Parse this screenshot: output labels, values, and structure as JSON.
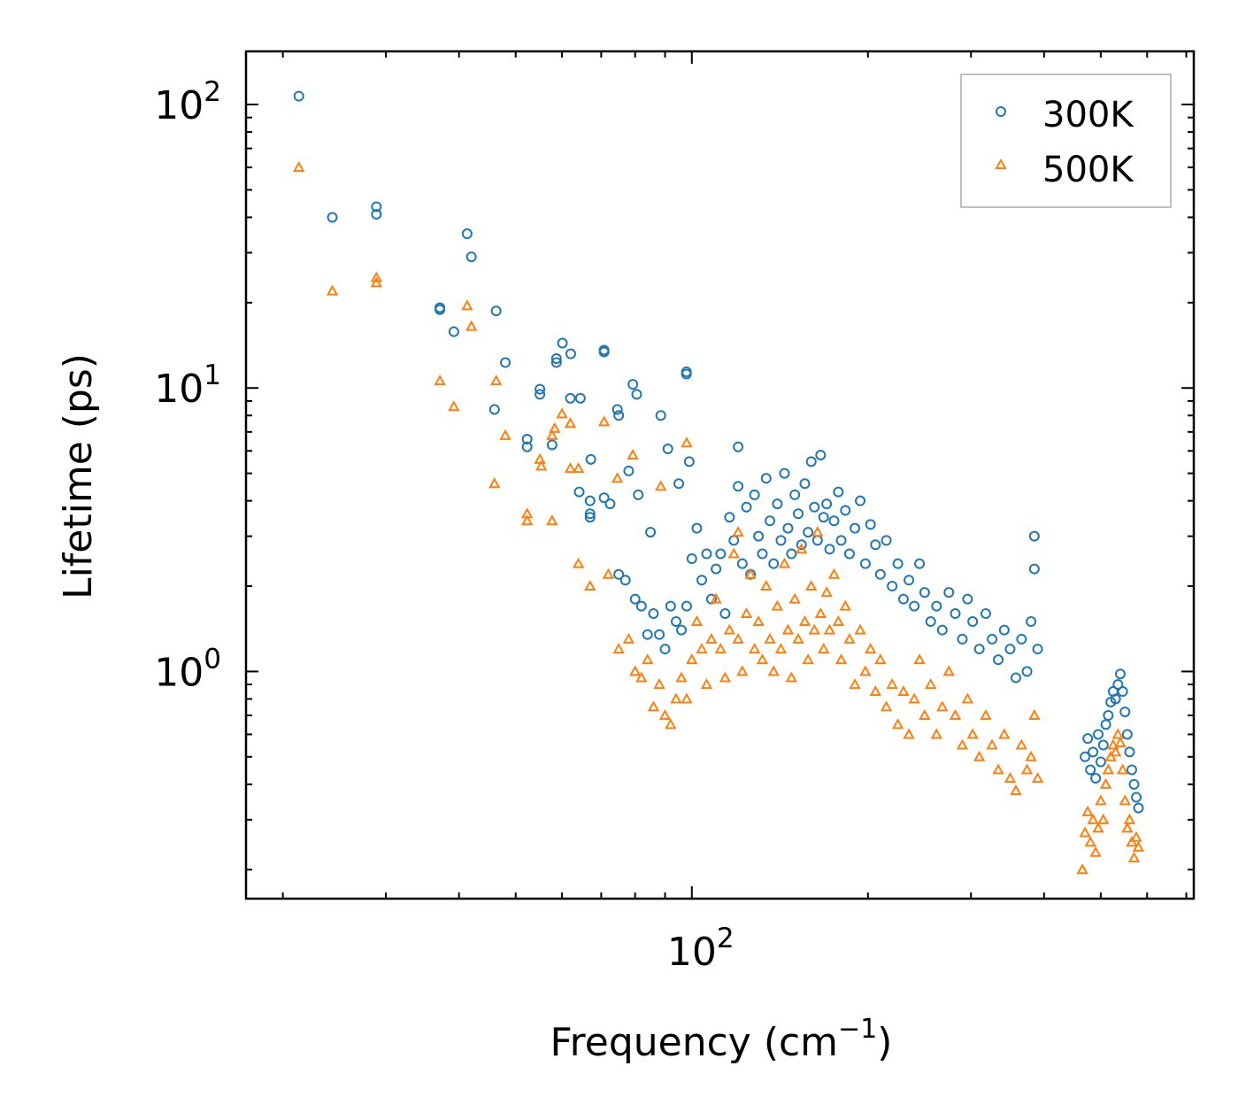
{
  "chart_data": {
    "type": "scatter",
    "title": "",
    "xlabel": "Frequency (cm",
    "xlabel_sup": "−1",
    "xlabel_end": ")",
    "ylabel": "Lifetime (ps)",
    "xscale": "log",
    "yscale": "log",
    "xlim": [
      17.3,
      721
    ],
    "ylim": [
      0.158,
      154
    ],
    "x_ticks": [
      {
        "value": 100,
        "base": "10",
        "exp": "2"
      }
    ],
    "y_ticks": [
      {
        "value": 1,
        "base": "10",
        "exp": "0"
      },
      {
        "value": 10,
        "base": "10",
        "exp": "1"
      },
      {
        "value": 100,
        "base": "10",
        "exp": "2"
      }
    ],
    "legend_position": "top-right",
    "series": [
      {
        "name": "300K",
        "marker": "circle",
        "color": "#1f77b4",
        "points": [
          [
            21.3,
            107
          ],
          [
            24.3,
            40
          ],
          [
            28.9,
            43.6
          ],
          [
            28.9,
            41
          ],
          [
            41.3,
            35
          ],
          [
            42,
            29
          ],
          [
            37.1,
            19.2
          ],
          [
            37.1,
            18.9
          ],
          [
            39.2,
            15.8
          ],
          [
            46.3,
            18.7
          ],
          [
            48,
            12.3
          ],
          [
            60.1,
            14.4
          ],
          [
            58.7,
            12.7
          ],
          [
            58.7,
            12.3
          ],
          [
            62.1,
            13.2
          ],
          [
            70.8,
            13.6
          ],
          [
            70.8,
            13.4
          ],
          [
            97.9,
            11.4
          ],
          [
            97.9,
            11.2
          ],
          [
            46,
            8.4
          ],
          [
            55,
            9.9
          ],
          [
            55,
            9.5
          ],
          [
            62,
            9.2
          ],
          [
            64.5,
            9.2
          ],
          [
            74.6,
            8.4
          ],
          [
            75,
            8.0
          ],
          [
            79.3,
            10.3
          ],
          [
            80.5,
            9.5
          ],
          [
            88.5,
            8.0
          ],
          [
            52.3,
            6.6
          ],
          [
            52.3,
            6.2
          ],
          [
            57.7,
            6.3
          ],
          [
            67.2,
            5.6
          ],
          [
            64.2,
            4.3
          ],
          [
            67,
            4.0
          ],
          [
            67,
            3.6
          ],
          [
            67,
            3.5
          ],
          [
            70.8,
            4.1
          ],
          [
            72.5,
            3.9
          ],
          [
            78,
            5.1
          ],
          [
            81,
            4.2
          ],
          [
            85,
            3.1
          ],
          [
            91,
            6.1
          ],
          [
            95,
            4.6
          ],
          [
            99,
            5.5
          ],
          [
            75,
            2.2
          ],
          [
            77,
            2.1
          ],
          [
            80,
            1.8
          ],
          [
            82,
            1.7
          ],
          [
            84,
            1.35
          ],
          [
            86,
            1.6
          ],
          [
            88,
            1.35
          ],
          [
            90,
            1.2
          ],
          [
            92,
            1.7
          ],
          [
            94,
            1.5
          ],
          [
            96,
            1.4
          ],
          [
            98,
            1.7
          ],
          [
            100,
            2.5
          ],
          [
            102,
            3.2
          ],
          [
            104,
            2.1
          ],
          [
            106,
            2.6
          ],
          [
            108,
            1.8
          ],
          [
            110,
            2.3
          ],
          [
            112,
            2.6
          ],
          [
            114,
            1.6
          ],
          [
            116,
            3.5
          ],
          [
            118,
            2.9
          ],
          [
            120,
            4.5
          ],
          [
            120,
            6.2
          ],
          [
            122,
            2.4
          ],
          [
            124,
            3.8
          ],
          [
            126,
            2.2
          ],
          [
            128,
            4.2
          ],
          [
            130,
            3.0
          ],
          [
            132,
            2.6
          ],
          [
            134,
            4.8
          ],
          [
            136,
            3.4
          ],
          [
            138,
            2.4
          ],
          [
            140,
            3.9
          ],
          [
            142,
            2.9
          ],
          [
            144,
            5.0
          ],
          [
            146,
            3.2
          ],
          [
            148,
            2.6
          ],
          [
            150,
            4.2
          ],
          [
            152,
            3.6
          ],
          [
            154,
            2.8
          ],
          [
            156,
            4.6
          ],
          [
            158,
            3.1
          ],
          [
            160,
            5.5
          ],
          [
            162,
            3.8
          ],
          [
            164,
            2.9
          ],
          [
            166,
            5.8
          ],
          [
            168,
            3.5
          ],
          [
            170,
            3.9
          ],
          [
            172,
            2.7
          ],
          [
            175,
            3.4
          ],
          [
            178,
            4.3
          ],
          [
            180,
            2.9
          ],
          [
            183,
            3.7
          ],
          [
            186,
            2.6
          ],
          [
            190,
            3.2
          ],
          [
            194,
            4.0
          ],
          [
            198,
            2.4
          ],
          [
            202,
            3.3
          ],
          [
            206,
            2.8
          ],
          [
            210,
            2.2
          ],
          [
            215,
            2.9
          ],
          [
            220,
            2.0
          ],
          [
            225,
            2.4
          ],
          [
            230,
            1.8
          ],
          [
            235,
            2.1
          ],
          [
            240,
            1.7
          ],
          [
            245,
            2.4
          ],
          [
            250,
            1.9
          ],
          [
            256,
            1.5
          ],
          [
            262,
            1.7
          ],
          [
            268,
            1.4
          ],
          [
            275,
            1.9
          ],
          [
            282,
            1.6
          ],
          [
            290,
            1.3
          ],
          [
            296,
            1.8
          ],
          [
            302,
            1.5
          ],
          [
            310,
            1.2
          ],
          [
            318,
            1.6
          ],
          [
            326,
            1.3
          ],
          [
            334,
            1.1
          ],
          [
            342,
            1.4
          ],
          [
            350,
            1.2
          ],
          [
            358,
            0.95
          ],
          [
            366,
            1.3
          ],
          [
            374,
            1.0
          ],
          [
            380,
            1.5
          ],
          [
            385,
            3.0
          ],
          [
            385,
            2.3
          ],
          [
            390,
            1.2
          ],
          [
            470,
            0.5
          ],
          [
            475,
            0.58
          ],
          [
            480,
            0.45
          ],
          [
            485,
            0.52
          ],
          [
            490,
            0.42
          ],
          [
            495,
            0.6
          ],
          [
            500,
            0.48
          ],
          [
            505,
            0.55
          ],
          [
            510,
            0.65
          ],
          [
            515,
            0.7
          ],
          [
            520,
            0.78
          ],
          [
            525,
            0.85
          ],
          [
            530,
            0.8
          ],
          [
            535,
            0.9
          ],
          [
            540,
            0.98
          ],
          [
            545,
            0.85
          ],
          [
            550,
            0.72
          ],
          [
            555,
            0.6
          ],
          [
            560,
            0.52
          ],
          [
            565,
            0.45
          ],
          [
            570,
            0.4
          ],
          [
            575,
            0.36
          ],
          [
            580,
            0.33
          ]
        ]
      },
      {
        "name": "500K",
        "marker": "triangle",
        "color": "#ff7f0e",
        "points": [
          [
            21.3,
            60
          ],
          [
            24.3,
            22
          ],
          [
            28.9,
            24.5
          ],
          [
            28.9,
            23.5
          ],
          [
            37.1,
            10.6
          ],
          [
            39.2,
            8.6
          ],
          [
            41.3,
            19.5
          ],
          [
            42,
            16.5
          ],
          [
            46.3,
            10.6
          ],
          [
            48,
            6.8
          ],
          [
            46,
            4.6
          ],
          [
            52.3,
            3.6
          ],
          [
            52.3,
            3.4
          ],
          [
            55,
            5.6
          ],
          [
            55.3,
            5.3
          ],
          [
            57.7,
            6.8
          ],
          [
            58.3,
            7.2
          ],
          [
            60,
            8.1
          ],
          [
            62,
            7.5
          ],
          [
            62,
            5.2
          ],
          [
            64,
            5.2
          ],
          [
            57.7,
            3.4
          ],
          [
            64,
            2.4
          ],
          [
            67,
            2.0
          ],
          [
            70.8,
            7.6
          ],
          [
            72,
            2.2
          ],
          [
            74.6,
            4.8
          ],
          [
            79.3,
            5.8
          ],
          [
            88.5,
            4.5
          ],
          [
            98,
            6.4
          ],
          [
            75,
            1.2
          ],
          [
            78,
            1.3
          ],
          [
            80,
            1.0
          ],
          [
            82,
            0.95
          ],
          [
            84,
            1.1
          ],
          [
            86,
            0.75
          ],
          [
            88,
            0.9
          ],
          [
            90,
            0.7
          ],
          [
            92,
            0.65
          ],
          [
            94,
            0.8
          ],
          [
            96,
            0.95
          ],
          [
            98,
            0.8
          ],
          [
            100,
            1.1
          ],
          [
            102,
            1.5
          ],
          [
            104,
            1.2
          ],
          [
            106,
            0.9
          ],
          [
            108,
            1.3
          ],
          [
            110,
            1.8
          ],
          [
            112,
            1.2
          ],
          [
            114,
            0.95
          ],
          [
            116,
            1.4
          ],
          [
            118,
            2.6
          ],
          [
            120,
            3.1
          ],
          [
            120,
            1.3
          ],
          [
            122,
            1.0
          ],
          [
            124,
            1.6
          ],
          [
            126,
            2.2
          ],
          [
            128,
            1.2
          ],
          [
            130,
            1.5
          ],
          [
            132,
            1.1
          ],
          [
            134,
            2.0
          ],
          [
            136,
            1.3
          ],
          [
            138,
            1.0
          ],
          [
            140,
            1.7
          ],
          [
            142,
            1.2
          ],
          [
            144,
            2.4
          ],
          [
            146,
            1.4
          ],
          [
            148,
            0.95
          ],
          [
            150,
            1.8
          ],
          [
            152,
            1.3
          ],
          [
            154,
            2.7
          ],
          [
            156,
            1.5
          ],
          [
            158,
            1.1
          ],
          [
            160,
            2.0
          ],
          [
            162,
            1.4
          ],
          [
            164,
            3.1
          ],
          [
            166,
            1.6
          ],
          [
            168,
            1.2
          ],
          [
            170,
            1.9
          ],
          [
            172,
            1.4
          ],
          [
            175,
            2.2
          ],
          [
            178,
            1.5
          ],
          [
            180,
            1.1
          ],
          [
            183,
            1.7
          ],
          [
            186,
            1.3
          ],
          [
            190,
            0.9
          ],
          [
            194,
            1.4
          ],
          [
            198,
            1.0
          ],
          [
            202,
            1.2
          ],
          [
            206,
            0.85
          ],
          [
            210,
            1.1
          ],
          [
            215,
            0.75
          ],
          [
            220,
            0.9
          ],
          [
            225,
            0.65
          ],
          [
            230,
            0.85
          ],
          [
            235,
            0.6
          ],
          [
            240,
            0.8
          ],
          [
            245,
            1.1
          ],
          [
            250,
            0.7
          ],
          [
            256,
            0.9
          ],
          [
            262,
            0.6
          ],
          [
            268,
            0.75
          ],
          [
            275,
            1.0
          ],
          [
            282,
            0.7
          ],
          [
            290,
            0.55
          ],
          [
            296,
            0.8
          ],
          [
            302,
            0.6
          ],
          [
            310,
            0.5
          ],
          [
            318,
            0.7
          ],
          [
            326,
            0.55
          ],
          [
            334,
            0.45
          ],
          [
            342,
            0.6
          ],
          [
            350,
            0.42
          ],
          [
            358,
            0.38
          ],
          [
            366,
            0.55
          ],
          [
            374,
            0.45
          ],
          [
            380,
            0.5
          ],
          [
            385,
            0.7
          ],
          [
            390,
            0.42
          ],
          [
            465,
            0.2
          ],
          [
            470,
            0.27
          ],
          [
            475,
            0.32
          ],
          [
            480,
            0.25
          ],
          [
            485,
            0.3
          ],
          [
            490,
            0.23
          ],
          [
            495,
            0.28
          ],
          [
            500,
            0.35
          ],
          [
            505,
            0.3
          ],
          [
            510,
            0.4
          ],
          [
            515,
            0.45
          ],
          [
            520,
            0.5
          ],
          [
            525,
            0.55
          ],
          [
            530,
            0.52
          ],
          [
            535,
            0.6
          ],
          [
            540,
            0.56
          ],
          [
            545,
            0.45
          ],
          [
            550,
            0.35
          ],
          [
            555,
            0.28
          ],
          [
            560,
            0.3
          ],
          [
            565,
            0.25
          ],
          [
            570,
            0.22
          ],
          [
            575,
            0.26
          ],
          [
            580,
            0.24
          ]
        ]
      }
    ]
  }
}
